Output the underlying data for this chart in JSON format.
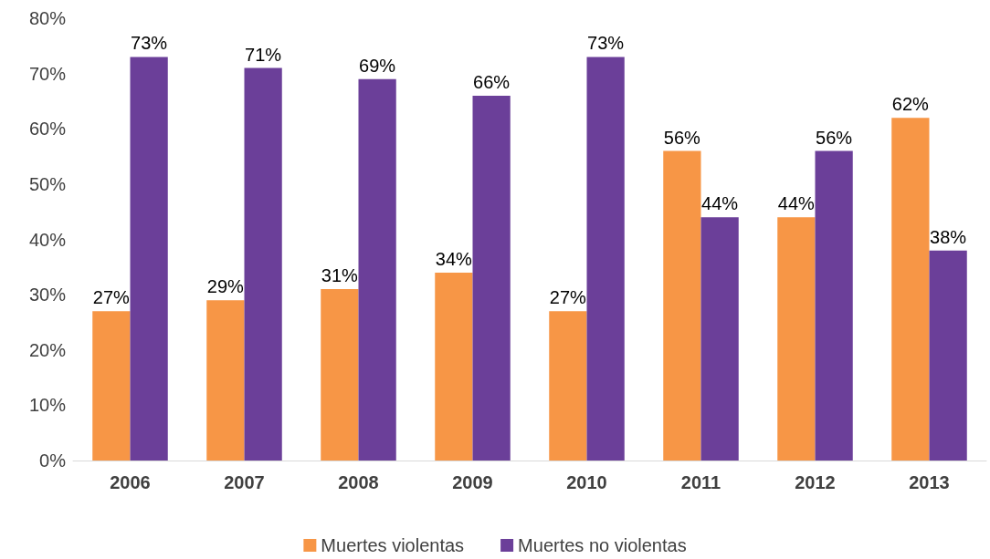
{
  "chart_data": {
    "type": "bar",
    "categories": [
      "2006",
      "2007",
      "2008",
      "2009",
      "2010",
      "2011",
      "2012",
      "2013"
    ],
    "series": [
      {
        "name": "Muertes violentas",
        "color": "#f79646",
        "values": [
          27,
          29,
          31,
          34,
          27,
          56,
          44,
          62
        ],
        "value_labels": [
          "27%",
          "29%",
          "31%",
          "34%",
          "27%",
          "56%",
          "44%",
          "62%"
        ]
      },
      {
        "name": "Muertes no violentas",
        "color": "#6b3f99",
        "values": [
          73,
          71,
          69,
          66,
          73,
          44,
          56,
          38
        ],
        "value_labels": [
          "73%",
          "71%",
          "69%",
          "66%",
          "73%",
          "44%",
          "56%",
          "38%"
        ]
      }
    ],
    "ylim": [
      0,
      80
    ],
    "yticks": [
      {
        "value": 0,
        "label": "0%"
      },
      {
        "value": 10,
        "label": "10%"
      },
      {
        "value": 20,
        "label": "20%"
      },
      {
        "value": 30,
        "label": "30%"
      },
      {
        "value": 40,
        "label": "40%"
      },
      {
        "value": 50,
        "label": "50%"
      },
      {
        "value": 60,
        "label": "60%"
      },
      {
        "value": 70,
        "label": "70%"
      },
      {
        "value": 80,
        "label": "80%"
      }
    ],
    "grid": false,
    "legend": "bottom"
  }
}
